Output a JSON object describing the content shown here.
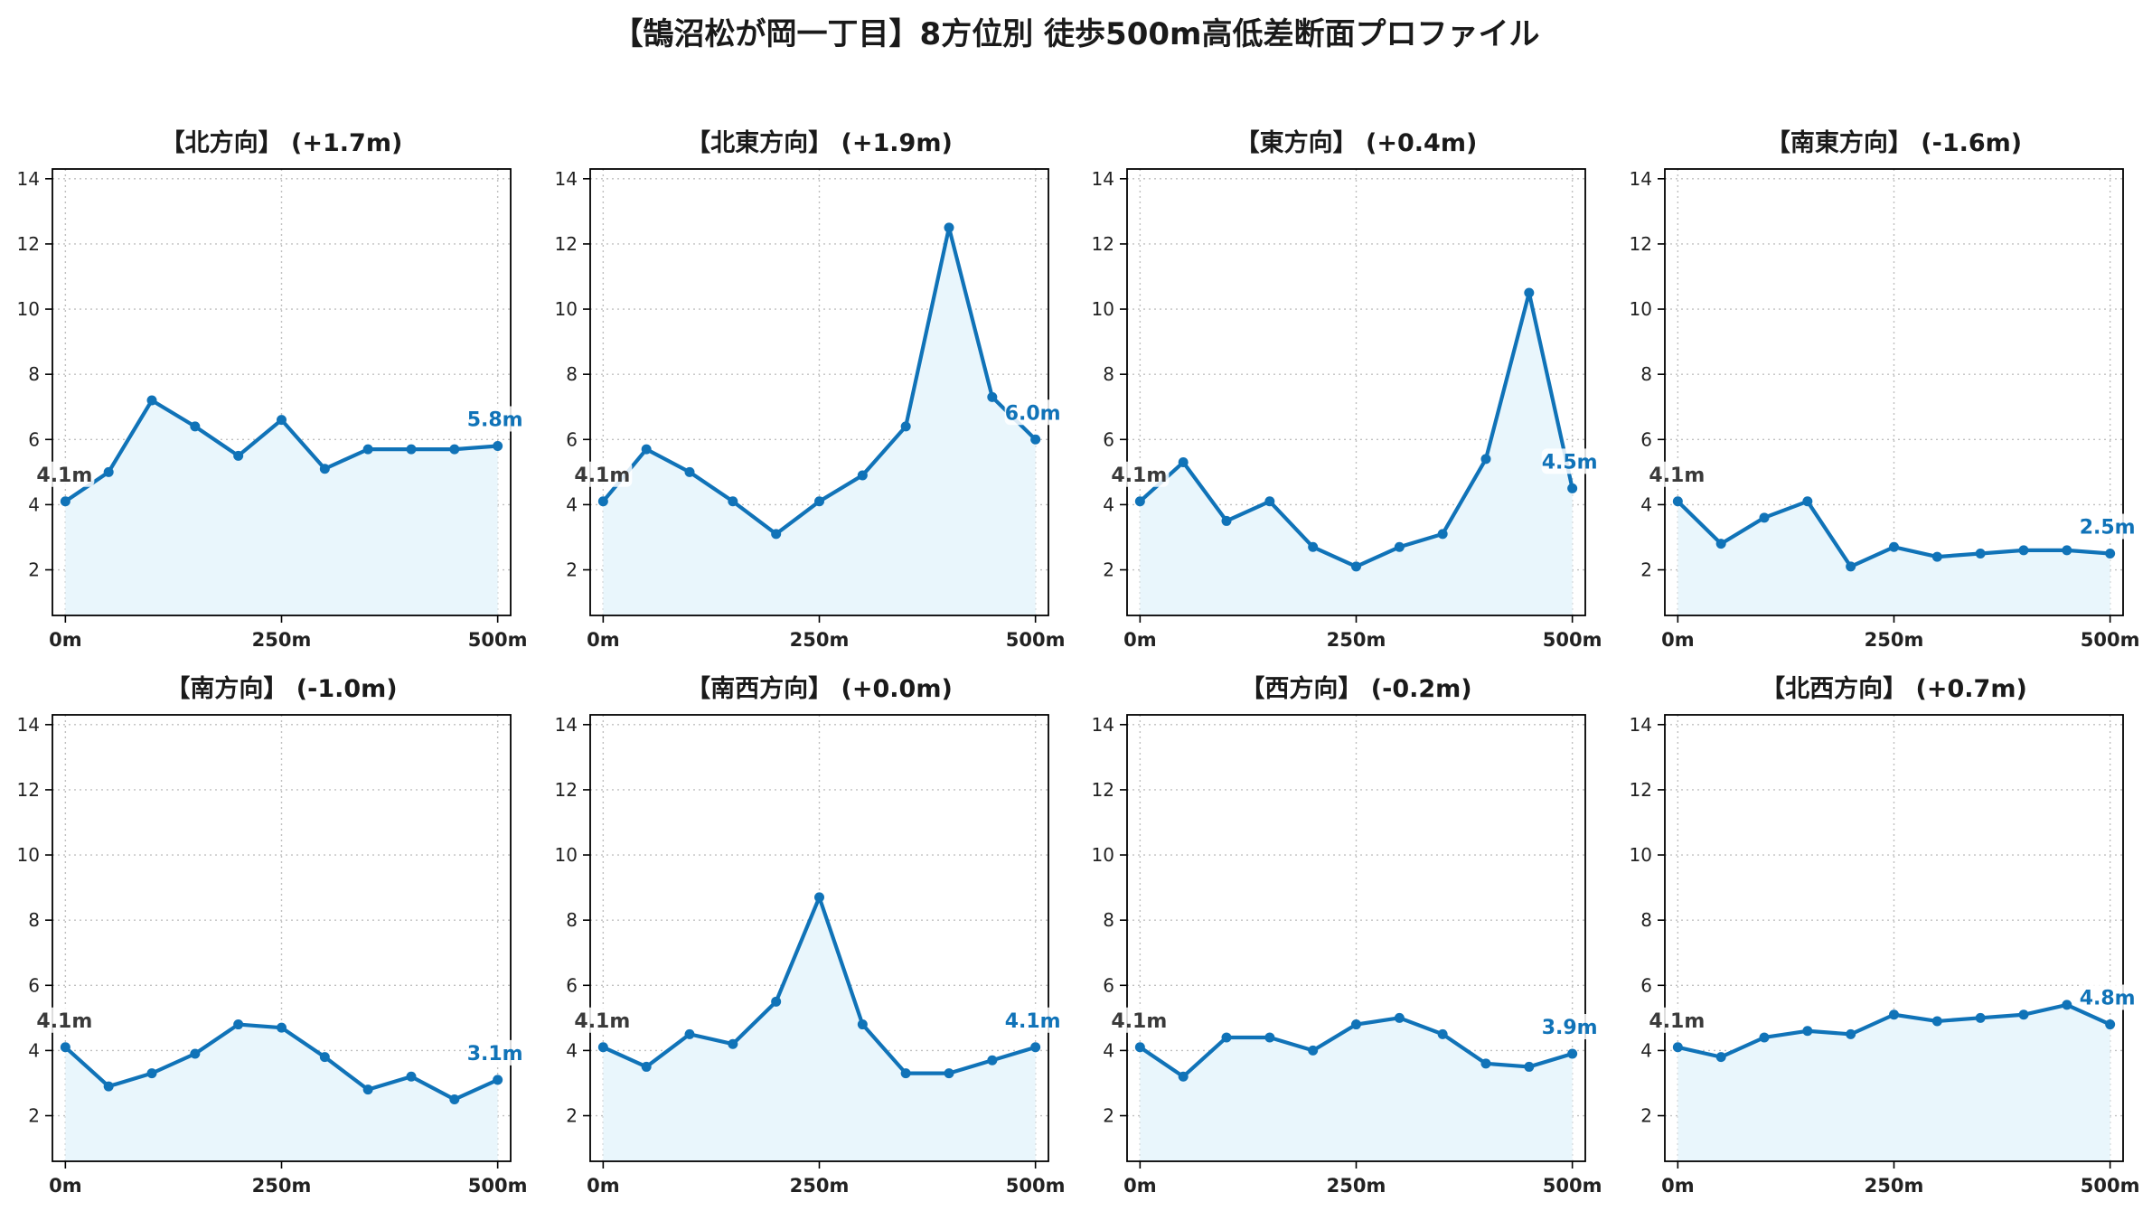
{
  "title": "【鵠沼松が岡一丁目】8方位別 徒歩500m高低差断面プロファイル",
  "colors": {
    "line": "#1073b8",
    "fill": "#e9f6fc",
    "grid": "#c0c0c0",
    "start_label": "#3a3a3a",
    "end_label": "#1073b8"
  },
  "chart_data": [
    {
      "type": "line",
      "title": "【北方向】 (+1.7m)",
      "x": [
        0,
        50,
        100,
        150,
        200,
        250,
        300,
        350,
        400,
        450,
        500
      ],
      "y": [
        4.1,
        5.0,
        7.2,
        6.4,
        5.5,
        6.6,
        5.1,
        5.7,
        5.7,
        5.7,
        5.8
      ],
      "x_ticks": [
        "0m",
        "250m",
        "500m"
      ],
      "y_ticks": [
        2,
        4,
        6,
        8,
        10,
        12,
        14
      ],
      "xlim": [
        -15,
        515
      ],
      "ylim": [
        0.6,
        14.3
      ],
      "start_label": "4.1m",
      "end_label": "5.8m",
      "grid": true
    },
    {
      "type": "line",
      "title": "【北東方向】 (+1.9m)",
      "x": [
        0,
        50,
        100,
        150,
        200,
        250,
        300,
        350,
        400,
        450,
        500
      ],
      "y": [
        4.1,
        5.7,
        5.0,
        4.1,
        3.1,
        4.1,
        4.9,
        6.4,
        12.5,
        7.3,
        6.0
      ],
      "x_ticks": [
        "0m",
        "250m",
        "500m"
      ],
      "y_ticks": [
        2,
        4,
        6,
        8,
        10,
        12,
        14
      ],
      "xlim": [
        -15,
        515
      ],
      "ylim": [
        0.6,
        14.3
      ],
      "start_label": "4.1m",
      "end_label": "6.0m",
      "grid": true
    },
    {
      "type": "line",
      "title": "【東方向】 (+0.4m)",
      "x": [
        0,
        50,
        100,
        150,
        200,
        250,
        300,
        350,
        400,
        450,
        500
      ],
      "y": [
        4.1,
        5.3,
        3.5,
        4.1,
        2.7,
        2.1,
        2.7,
        3.1,
        5.4,
        10.5,
        4.5
      ],
      "x_ticks": [
        "0m",
        "250m",
        "500m"
      ],
      "y_ticks": [
        2,
        4,
        6,
        8,
        10,
        12,
        14
      ],
      "xlim": [
        -15,
        515
      ],
      "ylim": [
        0.6,
        14.3
      ],
      "start_label": "4.1m",
      "end_label": "4.5m",
      "grid": true
    },
    {
      "type": "line",
      "title": "【南東方向】 (-1.6m)",
      "x": [
        0,
        50,
        100,
        150,
        200,
        250,
        300,
        350,
        400,
        450,
        500
      ],
      "y": [
        4.1,
        2.8,
        3.6,
        4.1,
        2.1,
        2.7,
        2.4,
        2.5,
        2.6,
        2.6,
        2.5
      ],
      "x_ticks": [
        "0m",
        "250m",
        "500m"
      ],
      "y_ticks": [
        2,
        4,
        6,
        8,
        10,
        12,
        14
      ],
      "xlim": [
        -15,
        515
      ],
      "ylim": [
        0.6,
        14.3
      ],
      "start_label": "4.1m",
      "end_label": "2.5m",
      "grid": true
    },
    {
      "type": "line",
      "title": "【南方向】 (-1.0m)",
      "x": [
        0,
        50,
        100,
        150,
        200,
        250,
        300,
        350,
        400,
        450,
        500
      ],
      "y": [
        4.1,
        2.9,
        3.3,
        3.9,
        4.8,
        4.7,
        3.8,
        2.8,
        3.2,
        2.5,
        3.1
      ],
      "x_ticks": [
        "0m",
        "250m",
        "500m"
      ],
      "y_ticks": [
        2,
        4,
        6,
        8,
        10,
        12,
        14
      ],
      "xlim": [
        -15,
        515
      ],
      "ylim": [
        0.6,
        14.3
      ],
      "start_label": "4.1m",
      "end_label": "3.1m",
      "grid": true
    },
    {
      "type": "line",
      "title": "【南西方向】 (+0.0m)",
      "x": [
        0,
        50,
        100,
        150,
        200,
        250,
        300,
        350,
        400,
        450,
        500
      ],
      "y": [
        4.1,
        3.5,
        4.5,
        4.2,
        5.5,
        8.7,
        4.8,
        3.3,
        3.3,
        3.7,
        4.1
      ],
      "x_ticks": [
        "0m",
        "250m",
        "500m"
      ],
      "y_ticks": [
        2,
        4,
        6,
        8,
        10,
        12,
        14
      ],
      "xlim": [
        -15,
        515
      ],
      "ylim": [
        0.6,
        14.3
      ],
      "start_label": "4.1m",
      "end_label": "4.1m",
      "grid": true
    },
    {
      "type": "line",
      "title": "【西方向】 (-0.2m)",
      "x": [
        0,
        50,
        100,
        150,
        200,
        250,
        300,
        350,
        400,
        450,
        500
      ],
      "y": [
        4.1,
        3.2,
        4.4,
        4.4,
        4.0,
        4.8,
        5.0,
        4.5,
        3.6,
        3.5,
        3.9
      ],
      "x_ticks": [
        "0m",
        "250m",
        "500m"
      ],
      "y_ticks": [
        2,
        4,
        6,
        8,
        10,
        12,
        14
      ],
      "xlim": [
        -15,
        515
      ],
      "ylim": [
        0.6,
        14.3
      ],
      "start_label": "4.1m",
      "end_label": "3.9m",
      "grid": true
    },
    {
      "type": "line",
      "title": "【北西方向】 (+0.7m)",
      "x": [
        0,
        50,
        100,
        150,
        200,
        250,
        300,
        350,
        400,
        450,
        500
      ],
      "y": [
        4.1,
        3.8,
        4.4,
        4.6,
        4.5,
        5.1,
        4.9,
        5.0,
        5.1,
        5.4,
        4.8
      ],
      "x_ticks": [
        "0m",
        "250m",
        "500m"
      ],
      "y_ticks": [
        2,
        4,
        6,
        8,
        10,
        12,
        14
      ],
      "xlim": [
        -15,
        515
      ],
      "ylim": [
        0.6,
        14.3
      ],
      "start_label": "4.1m",
      "end_label": "4.8m",
      "grid": true
    }
  ]
}
